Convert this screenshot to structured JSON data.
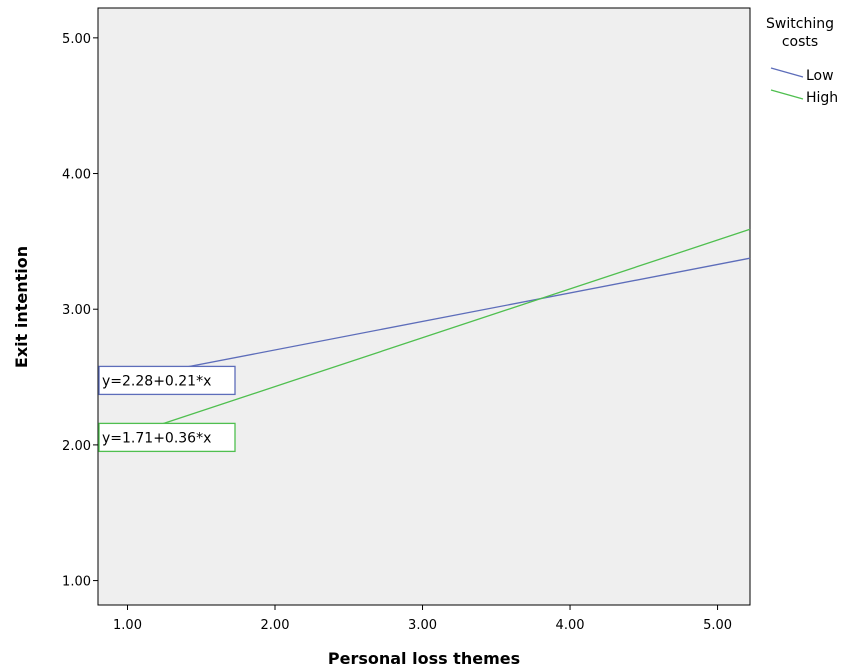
{
  "chart_data": {
    "type": "line",
    "title": "",
    "xlabel": "Personal loss themes",
    "ylabel": "Exit intention",
    "xlim": [
      0.8,
      5.22
    ],
    "ylim": [
      0.82,
      5.22
    ],
    "xticks": [
      1.0,
      2.0,
      3.0,
      4.0,
      5.0
    ],
    "xtick_labels": [
      "1.00",
      "2.00",
      "3.00",
      "4.00",
      "5.00"
    ],
    "yticks": [
      1.0,
      2.0,
      3.0,
      4.0,
      5.0
    ],
    "ytick_labels": [
      "1.00",
      "2.00",
      "3.00",
      "4.00",
      "5.00"
    ],
    "grid": false,
    "background": "#efefef",
    "legend": {
      "title": "Switching costs",
      "placement": "right"
    },
    "series": [
      {
        "name": "Low",
        "color": "#5d6dba",
        "intercept": 2.28,
        "slope": 0.21,
        "x": [
          1.0,
          5.22
        ],
        "y": [
          2.49,
          3.376
        ],
        "equation_label": "y=2.28+0.21*x"
      },
      {
        "name": "High",
        "color": "#4fbf4f",
        "intercept": 1.71,
        "slope": 0.36,
        "x": [
          1.0,
          5.22
        ],
        "y": [
          2.07,
          3.589
        ],
        "equation_label": "y=1.71+0.36*x"
      }
    ]
  }
}
